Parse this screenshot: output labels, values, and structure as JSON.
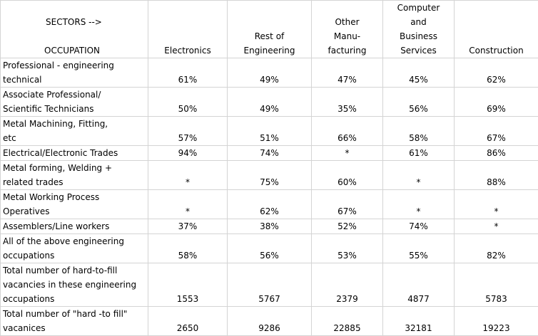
{
  "header": {
    "sectors_label": "SECTORS -->",
    "occupation_label": "OCCUPATION",
    "sectors": [
      {
        "lines": [
          "Electronics"
        ]
      },
      {
        "lines": [
          "Rest of",
          "Engineering"
        ]
      },
      {
        "lines": [
          "Other",
          "Manu-",
          "facturing"
        ]
      },
      {
        "lines": [
          "Computer",
          "and",
          "Business",
          "Services"
        ]
      },
      {
        "lines": [
          "Construction"
        ]
      }
    ]
  },
  "rows": [
    {
      "occupation": [
        "Professional - engineering",
        "technical"
      ],
      "values": [
        "61%",
        "49%",
        "47%",
        "45%",
        "62%"
      ]
    },
    {
      "occupation": [
        "Associate Professional/",
        "Scientific Technicians"
      ],
      "values": [
        "50%",
        "49%",
        "35%",
        "56%",
        "69%"
      ]
    },
    {
      "occupation": [
        "Metal Machining, Fitting,",
        "etc"
      ],
      "values": [
        "57%",
        "51%",
        "66%",
        "58%",
        "67%"
      ]
    },
    {
      "occupation": [
        "Electrical/Electronic Trades"
      ],
      "values": [
        "94%",
        "74%",
        "*",
        "61%",
        "86%"
      ]
    },
    {
      "occupation": [
        "Metal forming, Welding +",
        "related trades"
      ],
      "values": [
        "*",
        "75%",
        "60%",
        "*",
        "88%"
      ]
    },
    {
      "occupation": [
        "Metal Working Process",
        "Operatives"
      ],
      "values": [
        "*",
        "62%",
        "67%",
        "*",
        "*"
      ]
    },
    {
      "occupation": [
        "Assemblers/Line workers"
      ],
      "values": [
        "37%",
        "38%",
        "52%",
        "74%",
        "*"
      ]
    },
    {
      "occupation": [
        "All of the above engineering",
        "occupations"
      ],
      "values": [
        "58%",
        "56%",
        "53%",
        "55%",
        "82%"
      ]
    },
    {
      "occupation": [
        "Total number of hard-to-fill",
        "vacancies in these engineering",
        "occupations"
      ],
      "values": [
        "1553",
        "5767",
        "2379",
        "4877",
        "5783"
      ]
    },
    {
      "occupation": [
        "Total number of \"hard -to fill\"",
        "vacanices"
      ],
      "values": [
        "2650",
        "9286",
        "22885",
        "32181",
        "19223"
      ]
    }
  ]
}
